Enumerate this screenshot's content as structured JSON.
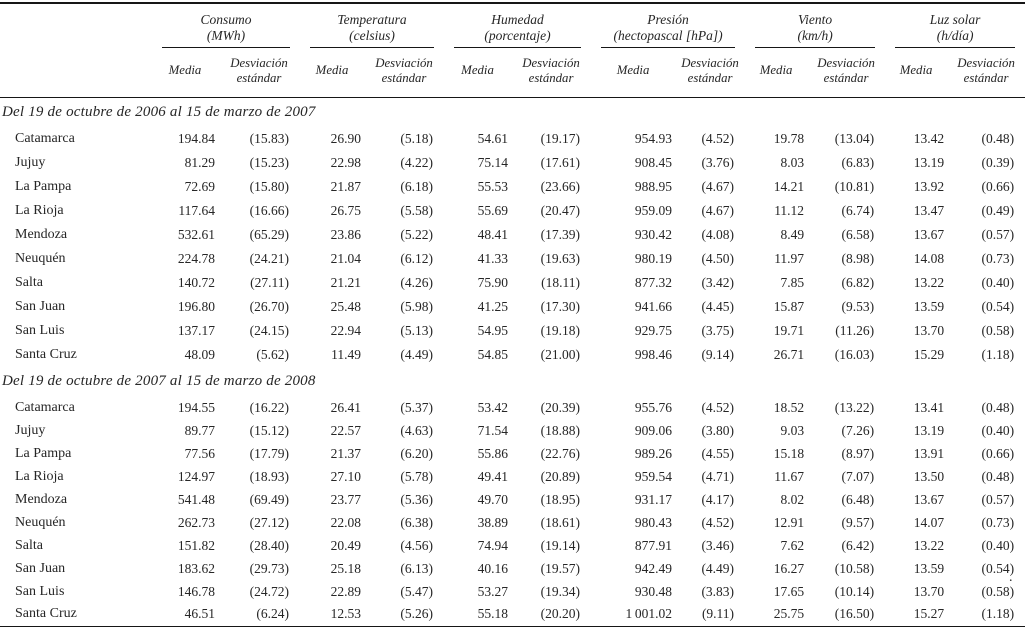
{
  "table": {
    "groups": [
      {
        "name": "Consumo",
        "unit": "(MWh)"
      },
      {
        "name": "Temperatura",
        "unit": "(celsius)"
      },
      {
        "name": "Humedad",
        "unit": "(porcentaje)"
      },
      {
        "name": "Presión",
        "unit": "(hectopascal [hPa])"
      },
      {
        "name": "Viento",
        "unit": "(km/h)"
      },
      {
        "name": "Luz solar",
        "unit": "(h/día)"
      }
    ],
    "subheaders": {
      "media": "Media",
      "sd": "Desviación estándar"
    },
    "sections": [
      {
        "title": "Del 19 de octubre de 2006 al 15 de marzo de 2007",
        "rows": [
          {
            "label": "Catamarca",
            "values": [
              "194.84",
              "(15.83)",
              "26.90",
              "(5.18)",
              "54.61",
              "(19.17)",
              "954.93",
              "(4.52)",
              "19.78",
              "(13.04)",
              "13.42",
              "(0.48)"
            ]
          },
          {
            "label": "Jujuy",
            "values": [
              "81.29",
              "(15.23)",
              "22.98",
              "(4.22)",
              "75.14",
              "(17.61)",
              "908.45",
              "(3.76)",
              "8.03",
              "(6.83)",
              "13.19",
              "(0.39)"
            ]
          },
          {
            "label": "La Pampa",
            "values": [
              "72.69",
              "(15.80)",
              "21.87",
              "(6.18)",
              "55.53",
              "(23.66)",
              "988.95",
              "(4.67)",
              "14.21",
              "(10.81)",
              "13.92",
              "(0.66)"
            ]
          },
          {
            "label": "La Rioja",
            "values": [
              "117.64",
              "(16.66)",
              "26.75",
              "(5.58)",
              "55.69",
              "(20.47)",
              "959.09",
              "(4.67)",
              "11.12",
              "(6.74)",
              "13.47",
              "(0.49)"
            ]
          },
          {
            "label": "Mendoza",
            "values": [
              "532.61",
              "(65.29)",
              "23.86",
              "(5.22)",
              "48.41",
              "(17.39)",
              "930.42",
              "(4.08)",
              "8.49",
              "(6.58)",
              "13.67",
              "(0.57)"
            ]
          },
          {
            "label": "Neuquén",
            "values": [
              "224.78",
              "(24.21)",
              "21.04",
              "(6.12)",
              "41.33",
              "(19.63)",
              "980.19",
              "(4.50)",
              "11.97",
              "(8.98)",
              "14.08",
              "(0.73)"
            ]
          },
          {
            "label": "Salta",
            "values": [
              "140.72",
              "(27.11)",
              "21.21",
              "(4.26)",
              "75.90",
              "(18.11)",
              "877.32",
              "(3.42)",
              "7.85",
              "(6.82)",
              "13.22",
              "(0.40)"
            ]
          },
          {
            "label": "San Juan",
            "values": [
              "196.80",
              "(26.70)",
              "25.48",
              "(5.98)",
              "41.25",
              "(17.30)",
              "941.66",
              "(4.45)",
              "15.87",
              "(9.53)",
              "13.59",
              "(0.54)"
            ]
          },
          {
            "label": "San Luis",
            "values": [
              "137.17",
              "(24.15)",
              "22.94",
              "(5.13)",
              "54.95",
              "(19.18)",
              "929.75",
              "(3.75)",
              "19.71",
              "(11.26)",
              "13.70",
              "(0.58)"
            ]
          },
          {
            "label": "Santa Cruz",
            "values": [
              "48.09",
              "(5.62)",
              "11.49",
              "(4.49)",
              "54.85",
              "(21.00)",
              "998.46",
              "(9.14)",
              "26.71",
              "(16.03)",
              "15.29",
              "(1.18)"
            ]
          }
        ]
      },
      {
        "title": "Del 19 de octubre de 2007 al 15 de marzo de 2008",
        "rows": [
          {
            "label": "Catamarca",
            "values": [
              "194.55",
              "(16.22)",
              "26.41",
              "(5.37)",
              "53.42",
              "(20.39)",
              "955.76",
              "(4.52)",
              "18.52",
              "(13.22)",
              "13.41",
              "(0.48)"
            ]
          },
          {
            "label": "Jujuy",
            "values": [
              "89.77",
              "(15.12)",
              "22.57",
              "(4.63)",
              "71.54",
              "(18.88)",
              "909.06",
              "(3.80)",
              "9.03",
              "(7.26)",
              "13.19",
              "(0.40)"
            ]
          },
          {
            "label": "La Pampa",
            "values": [
              "77.56",
              "(17.79)",
              "21.37",
              "(6.20)",
              "55.86",
              "(22.76)",
              "989.26",
              "(4.55)",
              "15.18",
              "(8.97)",
              "13.91",
              "(0.66)"
            ]
          },
          {
            "label": "La Rioja",
            "values": [
              "124.97",
              "(18.93)",
              "27.10",
              "(5.78)",
              "49.41",
              "(20.89)",
              "959.54",
              "(4.71)",
              "11.67",
              "(7.07)",
              "13.50",
              "(0.48)"
            ]
          },
          {
            "label": "Mendoza",
            "values": [
              "541.48",
              "(69.49)",
              "23.77",
              "(5.36)",
              "49.70",
              "(18.95)",
              "931.17",
              "(4.17)",
              "8.02",
              "(6.48)",
              "13.67",
              "(0.57)"
            ]
          },
          {
            "label": "Neuquén",
            "values": [
              "262.73",
              "(27.12)",
              "22.08",
              "(6.38)",
              "38.89",
              "(18.61)",
              "980.43",
              "(4.52)",
              "12.91",
              "(9.57)",
              "14.07",
              "(0.73)"
            ]
          },
          {
            "label": "Salta",
            "values": [
              "151.82",
              "(28.40)",
              "20.49",
              "(4.56)",
              "74.94",
              "(19.14)",
              "877.91",
              "(3.46)",
              "7.62",
              "(6.42)",
              "13.22",
              "(0.40)"
            ]
          },
          {
            "label": "San Juan",
            "values": [
              "183.62",
              "(29.73)",
              "25.18",
              "(6.13)",
              "40.16",
              "(19.57)",
              "942.49",
              "(4.49)",
              "16.27",
              "(10.58)",
              "13.59",
              "(0.54)"
            ]
          },
          {
            "label": "San Luis",
            "values": [
              "146.78",
              "(24.72)",
              "22.89",
              "(5.47)",
              "53.27",
              "(19.34)",
              "930.48",
              "(3.83)",
              "17.65",
              "(10.14)",
              "13.70",
              "(0.58)"
            ]
          },
          {
            "label": "Santa Cruz",
            "values": [
              "46.51",
              "(6.24)",
              "12.53",
              "(5.26)",
              "55.18",
              "(20.20)",
              "1 001.02",
              "(9.11)",
              "25.75",
              "(16.50)",
              "15.27",
              "(1.18)"
            ]
          }
        ]
      }
    ],
    "stray_mark": "."
  },
  "colors": {
    "text": "#262626",
    "rule": "#161616",
    "background": "#ffffff"
  }
}
